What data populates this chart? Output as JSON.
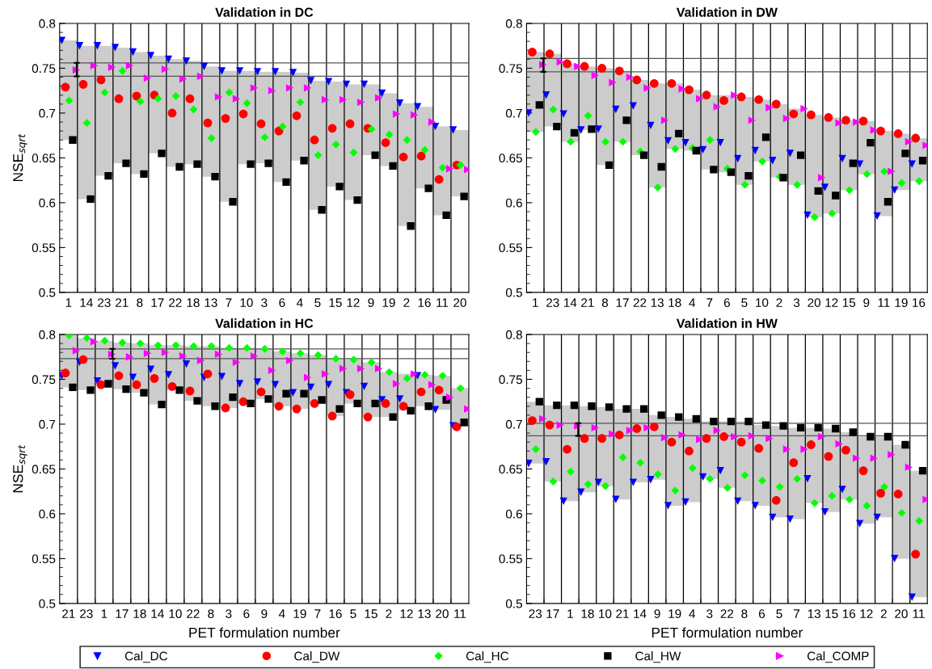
{
  "chart_data": [
    {
      "type": "scatter",
      "title": "Validation in DC",
      "ylabel": "NSE$_{sqrt}$",
      "categories": [
        "1",
        "14",
        "23",
        "21",
        "8",
        "17",
        "22",
        "18",
        "13",
        "7",
        "10",
        "3",
        "6",
        "4",
        "5",
        "15",
        "12",
        "9",
        "19",
        "2",
        "16",
        "11",
        "20"
      ],
      "ylim": [
        0.5,
        0.8
      ],
      "yticks": [
        0.5,
        0.55,
        0.6,
        0.65,
        0.7,
        0.75,
        0.8
      ],
      "grid": "x",
      "legend": "bottom",
      "ref_lines": [
        {
          "axis": "y",
          "value": 0.756,
          "color": "#555555"
        },
        {
          "axis": "y",
          "value": 0.741,
          "color": "#555555"
        }
      ],
      "series": [
        {
          "type": "bar",
          "color": "#cccccc",
          "base": [
            0.67,
            0.604,
            0.63,
            0.644,
            0.632,
            0.655,
            0.64,
            0.643,
            0.629,
            0.601,
            0.643,
            0.644,
            0.623,
            0.647,
            0.592,
            0.618,
            0.603,
            0.653,
            0.641,
            0.574,
            0.616,
            0.586,
            0.607
          ],
          "values": [
            0.111,
            0.171,
            0.145,
            0.129,
            0.136,
            0.109,
            0.12,
            0.115,
            0.123,
            0.146,
            0.104,
            0.102,
            0.123,
            0.098,
            0.144,
            0.117,
            0.129,
            0.079,
            0.081,
            0.137,
            0.091,
            0.099,
            0.074
          ]
        },
        {
          "name": "Cal_DC",
          "color": "#0000ff",
          "marker": "triangle-down",
          "values": [
            0.781,
            0.775,
            0.775,
            0.773,
            0.768,
            0.764,
            0.76,
            0.758,
            0.752,
            0.747,
            0.747,
            0.746,
            0.746,
            0.745,
            0.736,
            0.735,
            0.732,
            0.732,
            0.722,
            0.711,
            0.707,
            0.685,
            0.681
          ]
        },
        {
          "name": "Cal_DW",
          "color": "#ff0000",
          "marker": "circle",
          "values": [
            0.729,
            0.732,
            0.737,
            0.716,
            0.719,
            0.72,
            0.7,
            0.716,
            0.689,
            0.694,
            0.699,
            0.688,
            0.68,
            0.697,
            0.67,
            0.683,
            0.688,
            0.683,
            0.667,
            0.651,
            0.652,
            0.626,
            0.642
          ]
        },
        {
          "name": "Cal_HC",
          "color": "#00ff00",
          "marker": "diamond",
          "values": [
            0.714,
            0.689,
            0.723,
            0.747,
            0.713,
            0.716,
            0.719,
            0.704,
            0.672,
            0.723,
            0.711,
            0.673,
            0.685,
            0.712,
            0.653,
            0.665,
            0.656,
            0.682,
            0.676,
            0.67,
            0.659,
            0.639,
            0.642
          ]
        },
        {
          "name": "Cal_HW",
          "color": "#000000",
          "marker": "square",
          "values": [
            0.67,
            0.604,
            0.63,
            0.644,
            0.632,
            0.655,
            0.64,
            0.643,
            0.629,
            0.601,
            0.643,
            0.644,
            0.623,
            0.647,
            0.592,
            0.618,
            0.603,
            0.653,
            0.641,
            0.574,
            0.616,
            0.586,
            0.607
          ]
        },
        {
          "name": "Cal_COMP",
          "color": "#ff00ff",
          "marker": "triangle-right",
          "values": [
            0.748,
            0.753,
            0.751,
            0.753,
            0.739,
            0.749,
            0.738,
            0.741,
            0.718,
            0.716,
            0.728,
            0.725,
            0.728,
            0.728,
            0.715,
            0.715,
            0.712,
            0.717,
            0.699,
            0.698,
            0.69,
            0.638,
            0.637
          ]
        }
      ]
    },
    {
      "type": "scatter",
      "title": "Validation in DW",
      "categories": [
        "1",
        "23",
        "14",
        "21",
        "8",
        "17",
        "22",
        "13",
        "18",
        "4",
        "7",
        "6",
        "5",
        "10",
        "2",
        "3",
        "20",
        "12",
        "15",
        "9",
        "11",
        "19",
        "16"
      ],
      "ylim": [
        0.5,
        0.8
      ],
      "yticks": [
        0.5,
        0.55,
        0.6,
        0.65,
        0.7,
        0.75,
        0.8
      ],
      "grid": "x",
      "ref_lines": [
        {
          "axis": "y",
          "value": 0.761,
          "color": "#555555"
        },
        {
          "axis": "y",
          "value": 0.746,
          "color": "#555555"
        }
      ],
      "series": [
        {
          "type": "bar",
          "color": "#cccccc",
          "base": [
            0.679,
            0.685,
            0.668,
            0.681,
            0.642,
            0.668,
            0.653,
            0.617,
            0.66,
            0.658,
            0.637,
            0.634,
            0.62,
            0.646,
            0.628,
            0.62,
            0.584,
            0.588,
            0.614,
            0.632,
            0.585,
            0.614,
            0.624
          ],
          "values": [
            0.089,
            0.081,
            0.087,
            0.071,
            0.108,
            0.079,
            0.084,
            0.116,
            0.073,
            0.068,
            0.083,
            0.086,
            0.098,
            0.069,
            0.082,
            0.085,
            0.114,
            0.107,
            0.078,
            0.059,
            0.095,
            0.063,
            0.048
          ]
        },
        {
          "color": "#0000ff",
          "marker": "triangle-down",
          "values": [
            0.7,
            0.72,
            0.699,
            0.681,
            0.682,
            0.704,
            0.708,
            0.686,
            0.669,
            0.667,
            0.659,
            0.667,
            0.649,
            0.658,
            0.647,
            0.655,
            0.586,
            0.617,
            0.649,
            0.643,
            0.585,
            0.614,
            0.643
          ]
        },
        {
          "color": "#ff0000",
          "marker": "circle",
          "values": [
            0.768,
            0.766,
            0.755,
            0.752,
            0.75,
            0.747,
            0.737,
            0.733,
            0.733,
            0.726,
            0.72,
            0.714,
            0.718,
            0.715,
            0.71,
            0.699,
            0.698,
            0.695,
            0.692,
            0.691,
            0.68,
            0.677,
            0.672
          ]
        },
        {
          "color": "#00ff00",
          "marker": "diamond",
          "values": [
            0.679,
            0.704,
            0.668,
            0.697,
            0.668,
            0.668,
            0.657,
            0.617,
            0.66,
            0.661,
            0.67,
            0.638,
            0.62,
            0.646,
            0.629,
            0.62,
            0.584,
            0.588,
            0.614,
            0.632,
            0.635,
            0.622,
            0.624
          ]
        },
        {
          "color": "#000000",
          "marker": "square",
          "values": [
            0.709,
            0.685,
            0.678,
            0.682,
            0.642,
            0.692,
            0.653,
            0.64,
            0.677,
            0.658,
            0.637,
            0.634,
            0.63,
            0.673,
            0.628,
            0.653,
            0.613,
            0.608,
            0.644,
            0.667,
            0.601,
            0.655,
            0.647
          ]
        },
        {
          "color": "#ff00ff",
          "marker": "triangle-right",
          "values": [
            0.754,
            0.757,
            0.752,
            0.742,
            0.734,
            0.74,
            0.728,
            0.692,
            0.727,
            0.716,
            0.707,
            0.72,
            0.692,
            0.706,
            0.694,
            0.705,
            0.628,
            0.689,
            0.69,
            0.681,
            0.635,
            0.668,
            0.664
          ]
        }
      ]
    },
    {
      "type": "scatter",
      "title": "Validation in HC",
      "xlabel": "PET formulation number",
      "ylabel": "NSE$_{sqrt}$",
      "categories": [
        "21",
        "23",
        "1",
        "17",
        "18",
        "14",
        "10",
        "22",
        "8",
        "3",
        "6",
        "9",
        "4",
        "19",
        "7",
        "16",
        "5",
        "15",
        "2",
        "12",
        "13",
        "20",
        "11"
      ],
      "ylim": [
        0.5,
        0.8
      ],
      "yticks": [
        0.5,
        0.55,
        0.6,
        0.65,
        0.7,
        0.75,
        0.8
      ],
      "grid": "x",
      "ref_lines": [
        {
          "axis": "y",
          "value": 0.784,
          "color": "#555555"
        },
        {
          "axis": "y",
          "value": 0.773,
          "color": "#555555"
        }
      ],
      "series": [
        {
          "type": "bar",
          "color": "#cccccc",
          "base": [
            0.741,
            0.738,
            0.744,
            0.739,
            0.735,
            0.722,
            0.738,
            0.726,
            0.72,
            0.718,
            0.723,
            0.728,
            0.72,
            0.717,
            0.723,
            0.709,
            0.723,
            0.708,
            0.708,
            0.715,
            0.72,
            0.716,
            0.697
          ],
          "values": [
            0.058,
            0.058,
            0.049,
            0.052,
            0.055,
            0.066,
            0.05,
            0.061,
            0.067,
            0.067,
            0.062,
            0.056,
            0.061,
            0.062,
            0.054,
            0.064,
            0.049,
            0.061,
            0.05,
            0.041,
            0.035,
            0.038,
            0.043
          ]
        },
        {
          "color": "#0000ff",
          "marker": "triangle-down",
          "values": [
            0.754,
            0.769,
            0.748,
            0.765,
            0.752,
            0.761,
            0.755,
            0.767,
            0.752,
            0.753,
            0.745,
            0.747,
            0.744,
            0.735,
            0.741,
            0.744,
            0.735,
            0.742,
            0.727,
            0.728,
            0.754,
            0.716,
            0.698
          ]
        },
        {
          "color": "#ff0000",
          "marker": "circle",
          "values": [
            0.757,
            0.772,
            0.744,
            0.754,
            0.744,
            0.751,
            0.742,
            0.737,
            0.756,
            0.718,
            0.725,
            0.736,
            0.72,
            0.717,
            0.723,
            0.709,
            0.733,
            0.708,
            0.723,
            0.72,
            0.736,
            0.738,
            0.697
          ]
        },
        {
          "color": "#00ff00",
          "marker": "diamond",
          "values": [
            0.799,
            0.796,
            0.793,
            0.791,
            0.79,
            0.788,
            0.788,
            0.787,
            0.787,
            0.785,
            0.785,
            0.784,
            0.781,
            0.779,
            0.777,
            0.773,
            0.772,
            0.769,
            0.758,
            0.751,
            0.755,
            0.754,
            0.74
          ]
        },
        {
          "color": "#000000",
          "marker": "square",
          "values": [
            0.741,
            0.738,
            0.745,
            0.739,
            0.735,
            0.722,
            0.738,
            0.726,
            0.72,
            0.73,
            0.723,
            0.728,
            0.734,
            0.734,
            0.727,
            0.717,
            0.723,
            0.723,
            0.708,
            0.715,
            0.72,
            0.727,
            0.702
          ]
        },
        {
          "color": "#ff00ff",
          "marker": "triangle-right",
          "values": [
            0.782,
            0.792,
            0.778,
            0.775,
            0.779,
            0.78,
            0.776,
            0.771,
            0.778,
            0.769,
            0.776,
            0.76,
            0.771,
            0.752,
            0.756,
            0.762,
            0.762,
            0.762,
            0.745,
            0.756,
            0.744,
            0.73,
            0.717
          ]
        }
      ]
    },
    {
      "type": "scatter",
      "title": "Validation in HW",
      "xlabel": "PET formulation number",
      "categories": [
        "23",
        "17",
        "1",
        "18",
        "10",
        "21",
        "14",
        "9",
        "19",
        "4",
        "3",
        "22",
        "8",
        "6",
        "5",
        "7",
        "13",
        "15",
        "16",
        "12",
        "2",
        "20",
        "11"
      ],
      "ylim": [
        0.5,
        0.8
      ],
      "yticks": [
        0.5,
        0.55,
        0.6,
        0.65,
        0.7,
        0.75,
        0.8
      ],
      "grid": "x",
      "ref_lines": [
        {
          "axis": "y",
          "value": 0.701,
          "color": "#555555"
        },
        {
          "axis": "y",
          "value": 0.687,
          "color": "#555555"
        }
      ],
      "series": [
        {
          "type": "bar",
          "color": "#cccccc",
          "base": [
            0.656,
            0.636,
            0.614,
            0.624,
            0.631,
            0.616,
            0.635,
            0.638,
            0.609,
            0.613,
            0.639,
            0.629,
            0.614,
            0.609,
            0.596,
            0.594,
            0.612,
            0.602,
            0.616,
            0.589,
            0.596,
            0.55,
            0.507
          ],
          "values": [
            0.069,
            0.085,
            0.107,
            0.096,
            0.088,
            0.101,
            0.082,
            0.072,
            0.099,
            0.093,
            0.064,
            0.074,
            0.089,
            0.09,
            0.102,
            0.102,
            0.084,
            0.093,
            0.075,
            0.097,
            0.09,
            0.127,
            0.141
          ]
        },
        {
          "color": "#0000ff",
          "marker": "triangle-down",
          "values": [
            0.656,
            0.658,
            0.614,
            0.624,
            0.635,
            0.616,
            0.635,
            0.638,
            0.609,
            0.613,
            0.641,
            0.648,
            0.614,
            0.609,
            0.596,
            0.594,
            0.639,
            0.602,
            0.627,
            0.589,
            0.596,
            0.55,
            0.507
          ]
        },
        {
          "color": "#ff0000",
          "marker": "circle",
          "values": [
            0.704,
            0.699,
            0.672,
            0.684,
            0.684,
            0.688,
            0.695,
            0.697,
            0.68,
            0.67,
            0.684,
            0.686,
            0.68,
            0.673,
            0.615,
            0.657,
            0.677,
            0.664,
            0.671,
            0.648,
            0.623,
            0.622,
            0.555
          ]
        },
        {
          "color": "#00ff00",
          "marker": "diamond",
          "values": [
            0.672,
            0.636,
            0.647,
            0.633,
            0.631,
            0.663,
            0.657,
            0.644,
            0.626,
            0.651,
            0.639,
            0.629,
            0.643,
            0.637,
            0.63,
            0.639,
            0.612,
            0.62,
            0.616,
            0.609,
            0.63,
            0.601,
            0.592
          ]
        },
        {
          "color": "#000000",
          "marker": "square",
          "values": [
            0.725,
            0.721,
            0.721,
            0.72,
            0.719,
            0.717,
            0.717,
            0.71,
            0.708,
            0.706,
            0.703,
            0.703,
            0.703,
            0.699,
            0.698,
            0.696,
            0.696,
            0.695,
            0.691,
            0.686,
            0.686,
            0.677,
            0.648
          ]
        },
        {
          "color": "#ff00ff",
          "marker": "triangle-right",
          "values": [
            0.706,
            0.699,
            0.698,
            0.696,
            0.689,
            0.693,
            0.696,
            0.685,
            0.688,
            0.683,
            0.693,
            0.686,
            0.687,
            0.684,
            0.672,
            0.672,
            0.686,
            0.678,
            0.662,
            0.662,
            0.666,
            0.652,
            0.616
          ]
        }
      ]
    }
  ]
}
